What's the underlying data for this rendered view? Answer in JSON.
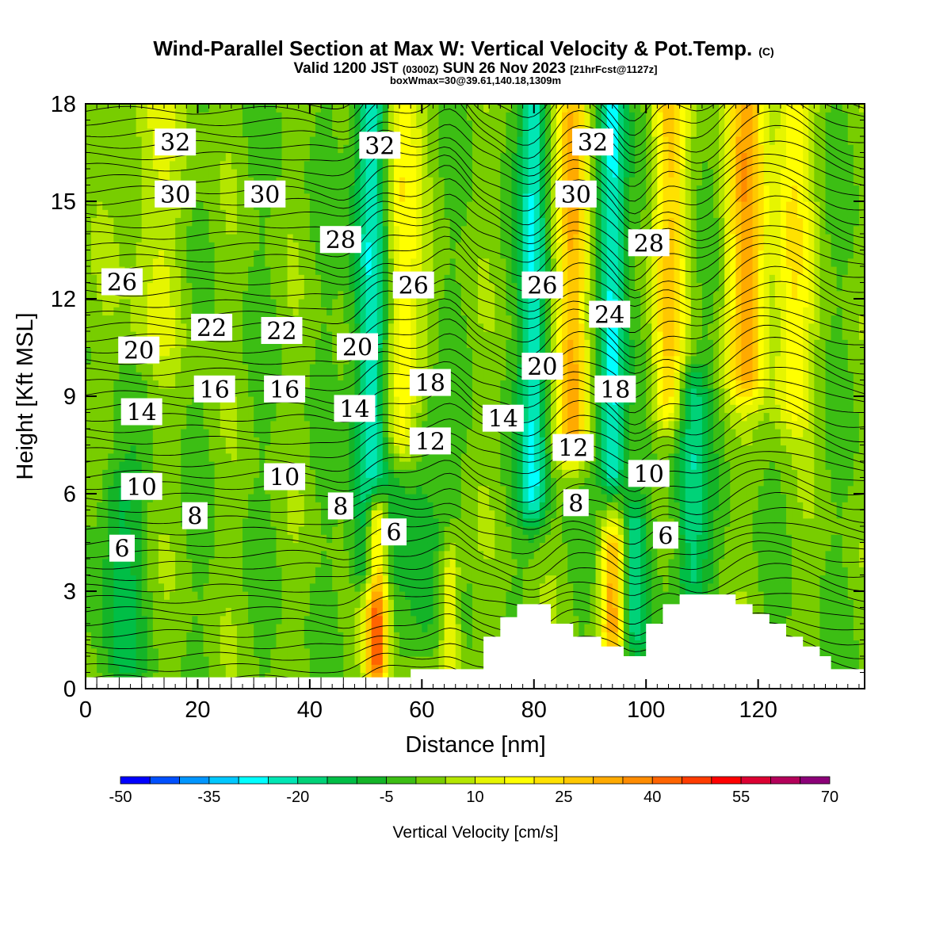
{
  "chart_data": {
    "type": "heatmap",
    "title": "Wind-Parallel Section at Max W: Vertical Velocity & Pot.Temp.",
    "title_mark": "(C)",
    "subtitle_main": "Valid 1200 JST",
    "subtitle_z": "(0300Z)",
    "subtitle_date": "SUN 26 Nov 2023",
    "subtitle_fcst": "[21hrFcst@1127z]",
    "subtitle2": "boxWmax=30@39.61,140.18,1309m",
    "xlabel": "Distance [nm]",
    "ylabel": "Height [Kft MSL]",
    "xlim": [
      0,
      139
    ],
    "ylim": [
      0,
      18
    ],
    "xticks": [
      0,
      20,
      40,
      60,
      80,
      100,
      120
    ],
    "yticks": [
      0,
      3,
      6,
      9,
      12,
      15,
      18
    ],
    "colorbar": {
      "label": "Vertical Velocity [cm/s]",
      "ticks": [
        -50,
        -35,
        -20,
        -5,
        10,
        25,
        40,
        55,
        70
      ],
      "range": [
        -50,
        70
      ],
      "step": 5,
      "colors": [
        "#0000ff",
        "#0050ff",
        "#0096ff",
        "#00c8ff",
        "#00ffff",
        "#00e6b4",
        "#00d278",
        "#00be46",
        "#14b428",
        "#3cbe14",
        "#78cd00",
        "#b4e600",
        "#e6f500",
        "#ffff00",
        "#ffe100",
        "#ffc800",
        "#ffaa00",
        "#ff8c00",
        "#ff6400",
        "#ff3c00",
        "#ff0000",
        "#dc0032",
        "#b4005a",
        "#8c0078"
      ]
    },
    "terrain": [
      [
        58,
        0
      ],
      [
        58,
        0.6
      ],
      [
        71,
        0.6
      ],
      [
        71,
        1.6
      ],
      [
        74,
        1.6
      ],
      [
        74,
        2.2
      ],
      [
        77,
        2.2
      ],
      [
        77,
        2.6
      ],
      [
        83,
        2.6
      ],
      [
        83,
        2.0
      ],
      [
        87,
        2.0
      ],
      [
        87,
        1.6
      ],
      [
        92,
        1.6
      ],
      [
        92,
        1.3
      ],
      [
        96,
        1.3
      ],
      [
        96,
        1.0
      ],
      [
        100,
        1.0
      ],
      [
        100,
        2.0
      ],
      [
        103,
        2.0
      ],
      [
        103,
        2.6
      ],
      [
        106,
        2.6
      ],
      [
        106,
        2.9
      ],
      [
        116,
        2.9
      ],
      [
        116,
        2.6
      ],
      [
        119,
        2.6
      ],
      [
        119,
        2.3
      ],
      [
        122,
        2.3
      ],
      [
        122,
        2.0
      ],
      [
        125,
        2.0
      ],
      [
        125,
        1.6
      ],
      [
        128,
        1.6
      ],
      [
        128,
        1.3
      ],
      [
        131,
        1.3
      ],
      [
        131,
        1.0
      ],
      [
        133,
        1.0
      ],
      [
        133,
        0.6
      ],
      [
        139,
        0.6
      ],
      [
        139,
        0
      ]
    ],
    "wave_features": [
      {
        "x": 51,
        "w": 3.2,
        "ymin": 4,
        "ymax": 18,
        "value": -28
      },
      {
        "x": 56,
        "w": 3.5,
        "ymin": 8,
        "ymax": 18,
        "value": 20
      },
      {
        "x": 52,
        "w": 2.0,
        "ymin": 1,
        "ymax": 5,
        "value": 45
      },
      {
        "x": 60,
        "w": 4.0,
        "ymin": 2,
        "ymax": 8,
        "value": -10
      },
      {
        "x": 65,
        "w": 1.8,
        "ymin": 1,
        "ymax": 3.5,
        "value": 18
      },
      {
        "x": 80,
        "w": 2.5,
        "ymin": 6,
        "ymax": 18,
        "value": -26
      },
      {
        "x": 87,
        "w": 2.8,
        "ymin": 8,
        "ymax": 18,
        "value": 32
      },
      {
        "x": 94,
        "w": 2.5,
        "ymin": 7,
        "ymax": 18,
        "value": -30
      },
      {
        "x": 94,
        "w": 2.0,
        "ymin": 2,
        "ymax": 4,
        "value": 30
      },
      {
        "x": 98,
        "w": 2.0,
        "ymin": 2,
        "ymax": 5,
        "value": -18
      },
      {
        "x": 104,
        "w": 3.0,
        "ymin": 9,
        "ymax": 18,
        "value": 24
      },
      {
        "x": 108,
        "w": 3.0,
        "ymin": 3.5,
        "ymax": 9,
        "value": -20
      },
      {
        "x": 118,
        "w": 3.5,
        "ymin": 10,
        "ymax": 18,
        "value": 30
      },
      {
        "x": 126,
        "w": 3.5,
        "ymin": 9,
        "ymax": 18,
        "value": 18
      },
      {
        "x": 12,
        "w": 6,
        "ymin": 11,
        "ymax": 18,
        "value": 8
      },
      {
        "x": 6,
        "w": 4,
        "ymin": 1,
        "ymax": 6,
        "value": -12
      }
    ],
    "contour_labels": [
      {
        "text": "32",
        "x": 16,
        "y": 16.8
      },
      {
        "text": "32",
        "x": 52.5,
        "y": 16.7
      },
      {
        "text": "32",
        "x": 90.5,
        "y": 16.8
      },
      {
        "text": "30",
        "x": 16,
        "y": 15.2
      },
      {
        "text": "30",
        "x": 32,
        "y": 15.2
      },
      {
        "text": "30",
        "x": 87.5,
        "y": 15.2
      },
      {
        "text": "28",
        "x": 45.5,
        "y": 13.8
      },
      {
        "text": "28",
        "x": 100.5,
        "y": 13.7
      },
      {
        "text": "26",
        "x": 6.5,
        "y": 12.5
      },
      {
        "text": "26",
        "x": 58.5,
        "y": 12.4
      },
      {
        "text": "26",
        "x": 81.5,
        "y": 12.4
      },
      {
        "text": "24",
        "x": 93.5,
        "y": 11.5
      },
      {
        "text": "22",
        "x": 22.5,
        "y": 11.1
      },
      {
        "text": "22",
        "x": 35,
        "y": 11.0
      },
      {
        "text": "20",
        "x": 9.5,
        "y": 10.4
      },
      {
        "text": "20",
        "x": 48.5,
        "y": 10.5
      },
      {
        "text": "20",
        "x": 81.5,
        "y": 9.9
      },
      {
        "text": "18",
        "x": 61.5,
        "y": 9.4
      },
      {
        "text": "18",
        "x": 94.5,
        "y": 9.2
      },
      {
        "text": "16",
        "x": 23,
        "y": 9.2
      },
      {
        "text": "16",
        "x": 35.5,
        "y": 9.2
      },
      {
        "text": "14",
        "x": 10,
        "y": 8.5
      },
      {
        "text": "14",
        "x": 48,
        "y": 8.6
      },
      {
        "text": "14",
        "x": 74.5,
        "y": 8.3
      },
      {
        "text": "12",
        "x": 61.5,
        "y": 7.6
      },
      {
        "text": "12",
        "x": 87,
        "y": 7.4
      },
      {
        "text": "10",
        "x": 10,
        "y": 6.2
      },
      {
        "text": "10",
        "x": 35.5,
        "y": 6.5
      },
      {
        "text": "10",
        "x": 100.5,
        "y": 6.6
      },
      {
        "text": "8",
        "x": 19.5,
        "y": 5.3
      },
      {
        "text": "8",
        "x": 45.5,
        "y": 5.6
      },
      {
        "text": "8",
        "x": 87.5,
        "y": 5.7
      },
      {
        "text": "6",
        "x": 6.5,
        "y": 4.3
      },
      {
        "text": "6",
        "x": 55,
        "y": 4.8
      },
      {
        "text": "6",
        "x": 103.5,
        "y": 4.7
      }
    ]
  }
}
